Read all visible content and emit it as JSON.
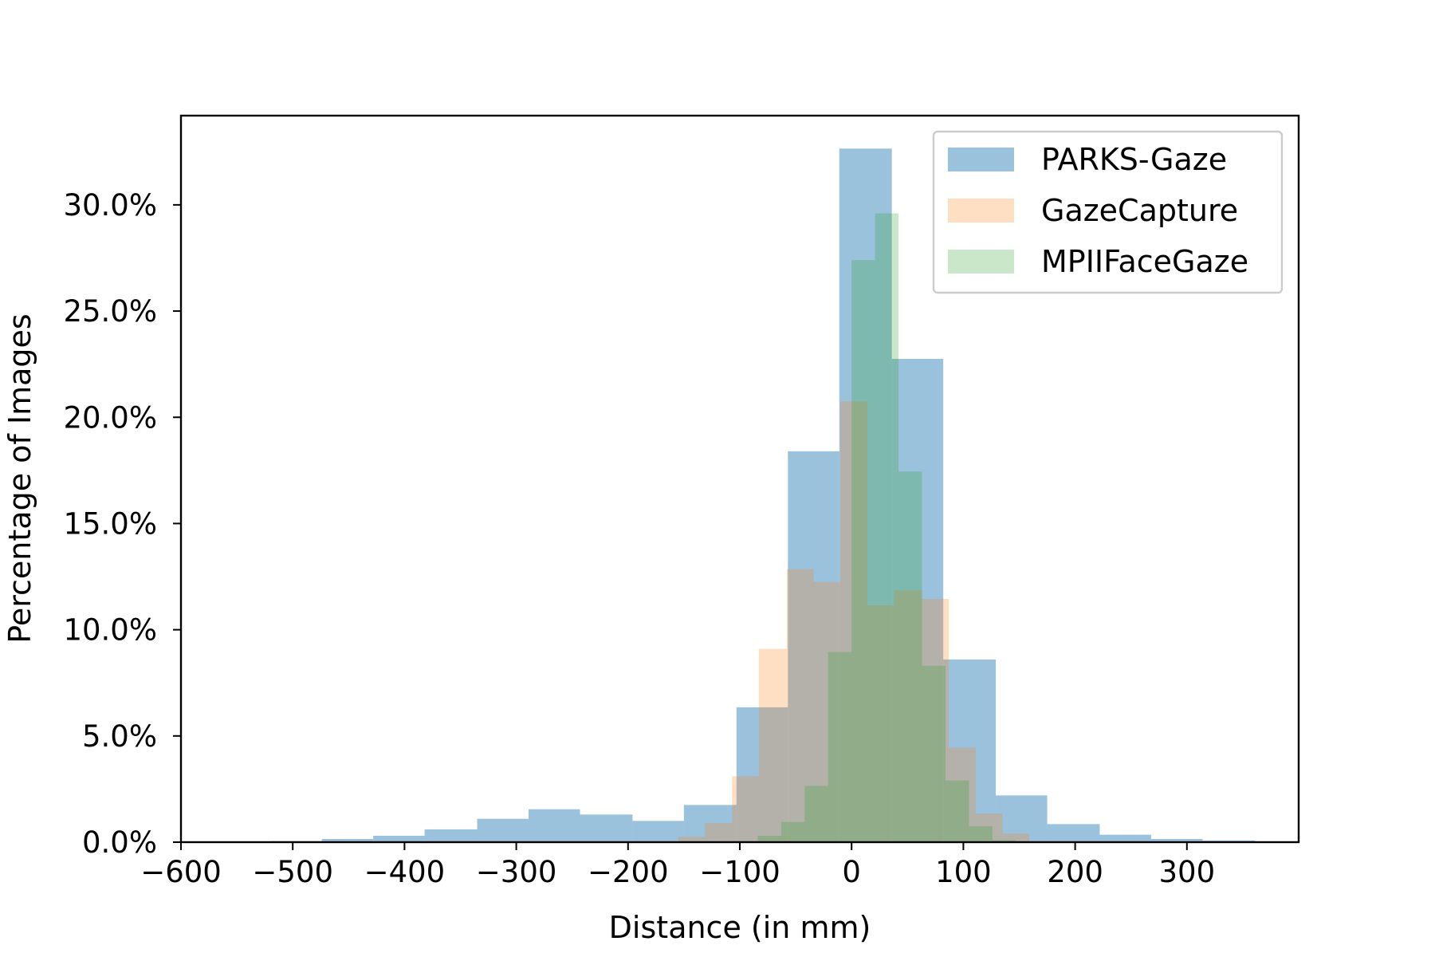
{
  "chart_data": {
    "type": "bar",
    "subtype": "overlapping-histogram",
    "title": "",
    "xlabel": "Distance (in mm)",
    "ylabel": "Percentage of Images",
    "xlim": [
      -600,
      400
    ],
    "ylim": [
      0,
      34.2
    ],
    "x_ticks": [
      -600,
      -500,
      -400,
      -300,
      -200,
      -100,
      0,
      100,
      200,
      300
    ],
    "x_tick_labels": [
      "−600",
      "−500",
      "−400",
      "−300",
      "−200",
      "−100",
      "0",
      "100",
      "200",
      "300"
    ],
    "y_ticks": [
      0,
      5,
      10,
      15,
      20,
      25,
      30
    ],
    "y_tick_labels": [
      "0.0%",
      "5.0%",
      "10.0%",
      "15.0%",
      "20.0%",
      "25.0%",
      "30.0%"
    ],
    "grid": false,
    "legend_position": "top-right",
    "series": [
      {
        "name": "PARKS-Gaze",
        "color": "#1f77b4",
        "opacity": 0.45,
        "bins": [
          {
            "x0": -520,
            "x1": -474,
            "y": 0.05
          },
          {
            "x0": -474,
            "x1": -428,
            "y": 0.15
          },
          {
            "x0": -428,
            "x1": -382,
            "y": 0.3
          },
          {
            "x0": -382,
            "x1": -335,
            "y": 0.6
          },
          {
            "x0": -335,
            "x1": -289,
            "y": 1.1
          },
          {
            "x0": -289,
            "x1": -243,
            "y": 1.55
          },
          {
            "x0": -243,
            "x1": -196,
            "y": 1.3
          },
          {
            "x0": -196,
            "x1": -150,
            "y": 1.0
          },
          {
            "x0": -150,
            "x1": -103,
            "y": 1.75
          },
          {
            "x0": -103,
            "x1": -57,
            "y": 6.35
          },
          {
            "x0": -57,
            "x1": -11,
            "y": 18.4
          },
          {
            "x0": -11,
            "x1": 36,
            "y": 32.65
          },
          {
            "x0": 36,
            "x1": 82,
            "y": 22.75
          },
          {
            "x0": 82,
            "x1": 129,
            "y": 8.6
          },
          {
            "x0": 129,
            "x1": 175,
            "y": 2.2
          },
          {
            "x0": 175,
            "x1": 222,
            "y": 0.85
          },
          {
            "x0": 222,
            "x1": 268,
            "y": 0.35
          },
          {
            "x0": 268,
            "x1": 314,
            "y": 0.15
          },
          {
            "x0": 314,
            "x1": 361,
            "y": 0.08
          }
        ]
      },
      {
        "name": "GazeCapture",
        "color": "#ff7f0e",
        "opacity": 0.25,
        "bins": [
          {
            "x0": -155,
            "x1": -131,
            "y": 0.25
          },
          {
            "x0": -131,
            "x1": -107,
            "y": 0.9
          },
          {
            "x0": -107,
            "x1": -83,
            "y": 3.1
          },
          {
            "x0": -83,
            "x1": -58,
            "y": 9.1
          },
          {
            "x0": -58,
            "x1": -34,
            "y": 12.85
          },
          {
            "x0": -34,
            "x1": -10,
            "y": 12.25
          },
          {
            "x0": -10,
            "x1": 14,
            "y": 20.75
          },
          {
            "x0": 14,
            "x1": 38,
            "y": 11.15
          },
          {
            "x0": 38,
            "x1": 63,
            "y": 11.85
          },
          {
            "x0": 63,
            "x1": 87,
            "y": 11.45
          },
          {
            "x0": 87,
            "x1": 111,
            "y": 4.45
          },
          {
            "x0": 111,
            "x1": 135,
            "y": 1.35
          },
          {
            "x0": 135,
            "x1": 159,
            "y": 0.4
          }
        ]
      },
      {
        "name": "MPIIFaceGaze",
        "color": "#2ca02c",
        "opacity": 0.25,
        "bins": [
          {
            "x0": -105,
            "x1": -84,
            "y": 0.05
          },
          {
            "x0": -84,
            "x1": -63,
            "y": 0.3
          },
          {
            "x0": -63,
            "x1": -42,
            "y": 0.95
          },
          {
            "x0": -42,
            "x1": -21,
            "y": 2.65
          },
          {
            "x0": -21,
            "x1": 0,
            "y": 8.95
          },
          {
            "x0": 0,
            "x1": 21,
            "y": 27.4
          },
          {
            "x0": 21,
            "x1": 42,
            "y": 29.6
          },
          {
            "x0": 42,
            "x1": 63,
            "y": 17.45
          },
          {
            "x0": 63,
            "x1": 84,
            "y": 8.3
          },
          {
            "x0": 84,
            "x1": 105,
            "y": 2.9
          },
          {
            "x0": 105,
            "x1": 126,
            "y": 0.75
          },
          {
            "x0": 126,
            "x1": 147,
            "y": 0.1
          }
        ]
      }
    ]
  }
}
